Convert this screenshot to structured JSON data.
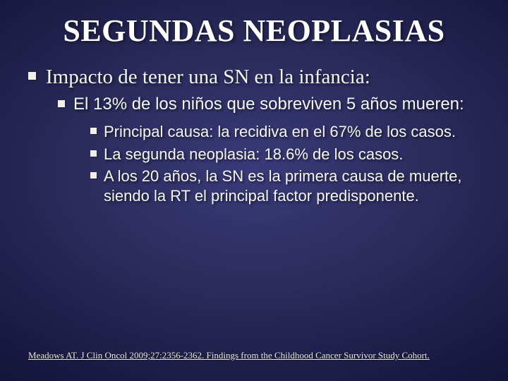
{
  "colors": {
    "background_center": "#3a3a7a",
    "background_edge": "#0a0a28",
    "text": "#f5f5f0",
    "bullet": "#f0f0e8"
  },
  "typography": {
    "title_font": "Times New Roman",
    "title_size_pt": 44,
    "title_weight": "bold",
    "l1_font": "Times New Roman",
    "l1_size_pt": 29,
    "l2_font": "Verdana",
    "l2_size_pt": 24,
    "l3_font": "Verdana",
    "l3_size_pt": 22,
    "citation_font": "Times New Roman",
    "citation_size_pt": 13
  },
  "title": "SEGUNDAS NEOPLASIAS",
  "level1": {
    "text": "Impacto de tener una SN en la infancia:"
  },
  "level2": {
    "text": "El 13% de los niños que sobreviven 5 años mueren:"
  },
  "level3": {
    "items": [
      "Principal causa: la recidiva en el 67% de los casos.",
      "La segunda neoplasia: 18.6% de los casos.",
      "A los 20 años, la SN es la primera causa de muerte, siendo la RT el principal factor predisponente."
    ]
  },
  "citation": "Meadows AT. J Clin Oncol 2009;27:2356-2362. Findings from the Childhood Cancer Survivor Study Cohort."
}
